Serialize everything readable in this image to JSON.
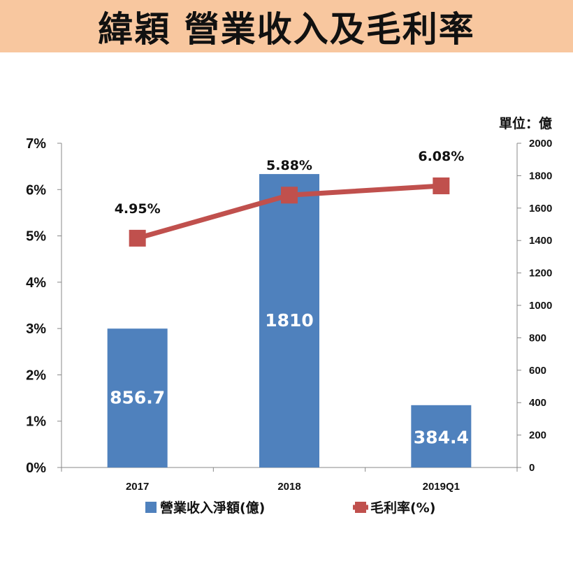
{
  "header": {
    "title": "緯穎 營業收入及毛利率"
  },
  "unit_note": "單位：億",
  "chart_data": {
    "type": "bar",
    "categories": [
      "2017",
      "2018",
      "2019Q1"
    ],
    "series": [
      {
        "name": "營業收入淨額(億)",
        "kind": "bar",
        "axis": "right",
        "values": [
          856.7,
          1810,
          384.4
        ],
        "labels": [
          "856.7",
          "1810",
          "384.4"
        ],
        "color": "#4f81bd"
      },
      {
        "name": "毛利率(%)",
        "kind": "line",
        "axis": "left",
        "values": [
          4.95,
          5.88,
          6.08
        ],
        "labels": [
          "4.95%",
          "5.88%",
          "6.08%"
        ],
        "color": "#c0504d"
      }
    ],
    "y_left": {
      "ylim": [
        0,
        7
      ],
      "ticks": [
        "0%",
        "1%",
        "2%",
        "3%",
        "4%",
        "5%",
        "6%",
        "7%"
      ]
    },
    "y_right": {
      "ylim": [
        0,
        2000
      ],
      "ticks": [
        "0",
        "200",
        "400",
        "600",
        "800",
        "1000",
        "1200",
        "1400",
        "1600",
        "1800",
        "2000"
      ]
    },
    "legend_position": "bottom",
    "grid": false
  }
}
